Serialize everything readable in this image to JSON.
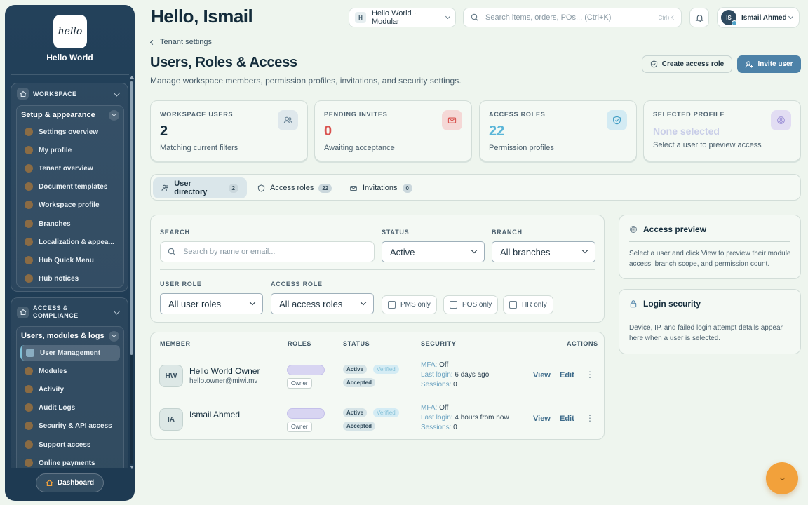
{
  "sidebar": {
    "logo_text": "hello",
    "brand": "Hello World",
    "workspace_group": {
      "label": "WORKSPACE",
      "subgroup": "Setup & appearance",
      "items": [
        "Settings overview",
        "My profile",
        "Tenant overview",
        "Document templates",
        "Workspace profile",
        "Branches",
        "Localization & appea...",
        "Hub Quick Menu",
        "Hub notices"
      ]
    },
    "access_group": {
      "label_line1": "ACCESS &",
      "label_line2": "COMPLIANCE",
      "subgroup": "Users, modules & logs",
      "items": [
        "User Management",
        "Modules",
        "Activity",
        "Audit Logs",
        "Security & API access",
        "Support access",
        "Online payments"
      ]
    },
    "dashboard_button": "Dashboard"
  },
  "topbar": {
    "greeting": "Hello, Ismail",
    "workspace_badge": "H",
    "workspace_name": "Hello World · Modular",
    "search_placeholder": "Search items, orders, POs... (Ctrl+K)",
    "search_shortcut": "Ctrl+K",
    "user_initials": "IS",
    "user_name": "Ismail Ahmed"
  },
  "header": {
    "breadcrumb": "Tenant settings",
    "title": "Users, Roles & Access",
    "subtitle": "Manage workspace members, permission profiles, invitations, and security settings.",
    "create_role_button": "Create access role",
    "invite_button": "Invite user"
  },
  "stats": [
    {
      "label": "WORKSPACE USERS",
      "value": "2",
      "desc": "Matching current filters"
    },
    {
      "label": "PENDING INVITES",
      "value": "0",
      "desc": "Awaiting acceptance"
    },
    {
      "label": "ACCESS ROLES",
      "value": "22",
      "desc": "Permission profiles"
    },
    {
      "label": "SELECTED PROFILE",
      "value": "None selected",
      "desc": "Select a user to preview access"
    }
  ],
  "tabs": [
    {
      "label": "User directory",
      "count": "2"
    },
    {
      "label": "Access roles",
      "count": "22"
    },
    {
      "label": "Invitations",
      "count": "0"
    }
  ],
  "filters": {
    "search_label": "SEARCH",
    "search_placeholder": "Search by name or email...",
    "status_label": "STATUS",
    "status_value": "Active",
    "branch_label": "BRANCH",
    "branch_value": "All branches",
    "user_role_label": "USER ROLE",
    "user_role_value": "All user roles",
    "access_role_label": "ACCESS ROLE",
    "access_role_value": "All access roles",
    "pms_only": "PMS only",
    "pos_only": "POS only",
    "hr_only": "HR only"
  },
  "table": {
    "headers": {
      "member": "MEMBER",
      "roles": "ROLES",
      "status": "STATUS",
      "security": "SECURITY",
      "actions": "ACTIONS"
    },
    "rows": [
      {
        "initials": "HW",
        "name": "Hello World Owner",
        "email": "hello.owner@miwi.mv",
        "role_tag": "Owner",
        "status": "Active",
        "verified": "Verified",
        "accepted": "Accepted",
        "mfa_key": "MFA:",
        "mfa_val": "Off",
        "login_key": "Last login:",
        "login_val": "6 days ago",
        "sessions_key": "Sessions:",
        "sessions_val": "0",
        "view": "View",
        "edit": "Edit"
      },
      {
        "initials": "IA",
        "name": "Ismail Ahmed",
        "email": "",
        "role_tag": "Owner",
        "status": "Active",
        "verified": "Verified",
        "accepted": "Accepted",
        "mfa_key": "MFA:",
        "mfa_val": "Off",
        "login_key": "Last login:",
        "login_val": "4 hours from now",
        "sessions_key": "Sessions:",
        "sessions_val": "0",
        "view": "View",
        "edit": "Edit"
      }
    ]
  },
  "panels": {
    "access_preview_title": "Access preview",
    "access_preview_text": "Select a user and click View to preview their module access, branch scope, and permission count.",
    "login_security_title": "Login security",
    "login_security_text": "Device, IP, and failed login attempt details appear here when a user is selected."
  },
  "colors": {
    "sidebar": "#23415a",
    "accent": "#4d82a8",
    "danger": "#d9534f",
    "info": "#5bb6d8",
    "fab": "#f2a13b"
  }
}
